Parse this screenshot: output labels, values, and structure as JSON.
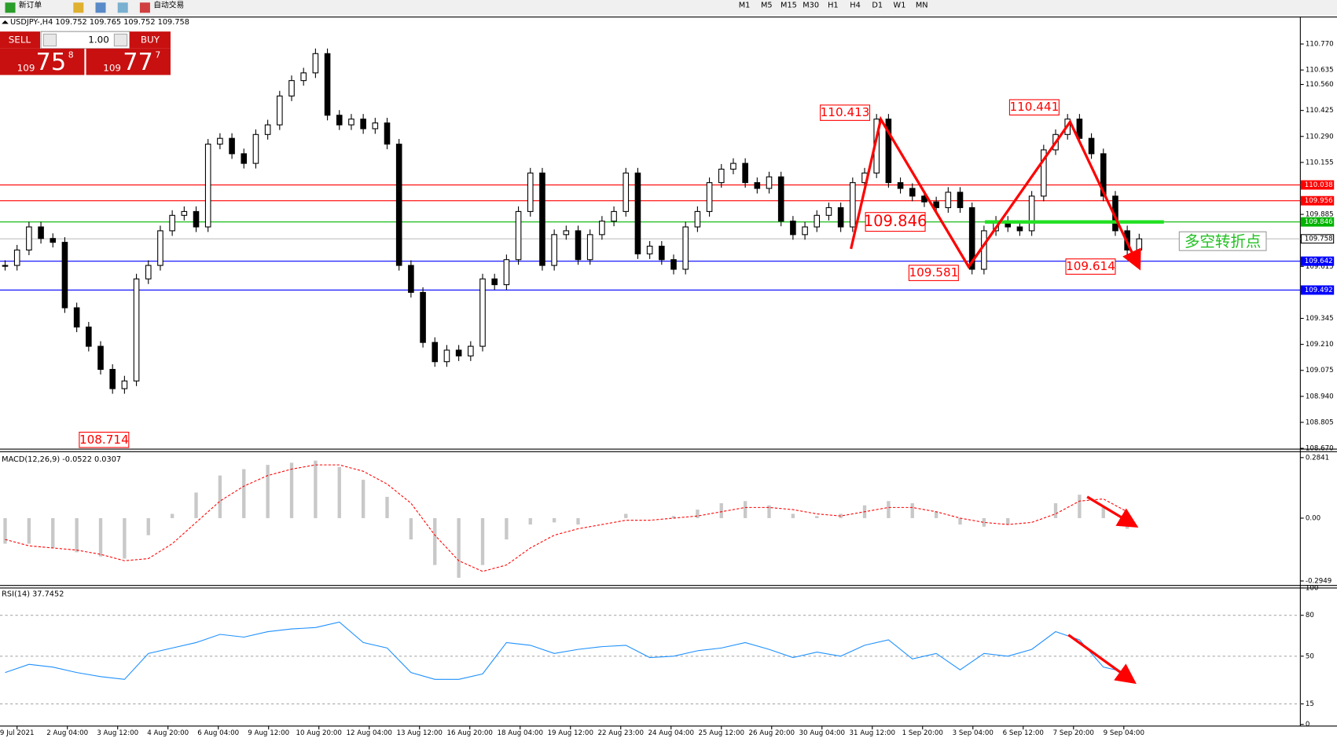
{
  "toolbar": {
    "new_order": "新订单",
    "auto_trading": "自动交易",
    "timeframes": [
      "M1",
      "M5",
      "M15",
      "M30",
      "H1",
      "H4",
      "D1",
      "W1",
      "MN"
    ]
  },
  "trade_panel": {
    "sell": "SELL",
    "buy": "BUY",
    "lots": "1.00",
    "bid": {
      "big_figure": "109",
      "pips": "75",
      "fraction": "8"
    },
    "ask": {
      "big_figure": "109",
      "pips": "77",
      "fraction": "7"
    }
  },
  "chart": {
    "title": "USDJPY-,H4 109.752 109.765 109.752 109.758",
    "ylim": [
      108.666,
      110.91
    ],
    "yticks": [
      {
        "value": 110.77,
        "label": "110.770"
      },
      110.635,
      {
        "value": 110.56,
        "label": "110.560"
      },
      110.425,
      {
        "value": 110.29,
        "label": "110.290"
      },
      110.155,
      109.885,
      109.615,
      109.345,
      {
        "value": 109.21,
        "label": "109.210"
      },
      109.075,
      {
        "value": 108.94,
        "label": "108.940"
      },
      108.805,
      {
        "value": 108.67,
        "label": "108.670"
      }
    ],
    "levels": [
      {
        "value": 110.038,
        "color": "#ff0000"
      },
      {
        "value": 109.956,
        "color": "#ff0000"
      },
      {
        "value": 109.846,
        "color": "#00b400"
      },
      {
        "value": 109.758,
        "color": "#c0c0c0"
      },
      {
        "value": 109.642,
        "color": "#0000ff"
      },
      {
        "value": 109.492,
        "color": "#0000ff"
      }
    ],
    "time_labels": [
      "9 Jul 2021",
      "2 Aug 04:00",
      "3 Aug 12:00",
      "4 Aug 20:00",
      "6 Aug 04:00",
      "9 Aug 12:00",
      "10 Aug 20:00",
      "12 Aug 04:00",
      "13 Aug 12:00",
      "16 Aug 20:00",
      "18 Aug 04:00",
      "19 Aug 12:00",
      "22 Aug 23:00",
      "24 Aug 04:00",
      "25 Aug 12:00",
      "26 Aug 20:00",
      "30 Aug 04:00",
      "31 Aug 12:00",
      "1 Sep 20:00",
      "3 Sep 04:00",
      "6 Sep 12:00",
      "7 Sep 20:00",
      "9 Sep 04:00"
    ],
    "closes": [
      109.62,
      109.7,
      109.82,
      109.76,
      109.74,
      109.4,
      109.3,
      109.2,
      109.08,
      108.98,
      109.02,
      109.55,
      109.62,
      109.8,
      109.88,
      109.9,
      109.82,
      110.25,
      110.28,
      110.2,
      110.15,
      110.3,
      110.35,
      110.5,
      110.58,
      110.62,
      110.72,
      110.4,
      110.35,
      110.38,
      110.33,
      110.36,
      110.25,
      109.62,
      109.48,
      109.22,
      109.12,
      109.18,
      109.15,
      109.2,
      109.55,
      109.52,
      109.65,
      109.9,
      110.1,
      109.62,
      109.78,
      109.8,
      109.65,
      109.78,
      109.85,
      109.9,
      110.1,
      109.68,
      109.72,
      109.65,
      109.6,
      109.82,
      109.9,
      110.05,
      110.12,
      110.15,
      110.05,
      110.02,
      110.08,
      109.85,
      109.78,
      109.82,
      109.88,
      109.92,
      109.82,
      110.05,
      110.1,
      110.38,
      110.05,
      110.02,
      109.98,
      109.95,
      109.92,
      110.0,
      109.92,
      109.6,
      109.8,
      109.85,
      109.82,
      109.8,
      109.98,
      110.22,
      110.3,
      110.38,
      110.28,
      110.2,
      109.98,
      109.8,
      109.7,
      109.758
    ],
    "annotations": [
      110.413,
      109.846,
      109.581,
      110.441,
      109.614,
      108.714
    ],
    "note": "多空转折点"
  },
  "macd": {
    "label": "MACD(12,26,9) -0.0522 0.0307",
    "ylim": [
      -0.316,
      0.312
    ],
    "yticks": [
      0.2841,
      {
        "value": 0,
        "label": "0.00"
      },
      -0.2949
    ],
    "histogram": [
      -0.12,
      -0.12,
      -0.14,
      -0.16,
      -0.18,
      -0.19,
      -0.08,
      0.02,
      0.12,
      0.2,
      0.23,
      0.25,
      0.26,
      0.27,
      0.24,
      0.18,
      0.1,
      -0.1,
      -0.22,
      -0.28,
      -0.22,
      -0.1,
      -0.03,
      -0.02,
      -0.03,
      0.0,
      0.02,
      0.0,
      0.01,
      0.04,
      0.07,
      0.08,
      0.06,
      0.02,
      0.01,
      0.02,
      0.06,
      0.08,
      0.07,
      0.03,
      -0.03,
      -0.04,
      -0.03,
      0.0,
      0.07,
      0.11,
      0.05,
      -0.05
    ],
    "signal": [
      -0.1,
      -0.13,
      -0.14,
      -0.15,
      -0.17,
      -0.2,
      -0.19,
      -0.12,
      -0.02,
      0.08,
      0.15,
      0.2,
      0.23,
      0.25,
      0.25,
      0.22,
      0.16,
      0.07,
      -0.08,
      -0.2,
      -0.25,
      -0.22,
      -0.14,
      -0.08,
      -0.05,
      -0.03,
      -0.01,
      -0.01,
      0.0,
      0.01,
      0.03,
      0.05,
      0.05,
      0.04,
      0.02,
      0.01,
      0.03,
      0.05,
      0.05,
      0.03,
      0.0,
      -0.02,
      -0.03,
      -0.02,
      0.02,
      0.08,
      0.09,
      0.03
    ]
  },
  "rsi": {
    "label": "RSI(14) 37.7452",
    "ylim": [
      -1.25,
      100
    ],
    "yticks": [
      100,
      80,
      50,
      15,
      0
    ],
    "values": [
      38,
      44,
      42,
      38,
      35,
      33,
      52,
      56,
      60,
      66,
      64,
      68,
      70,
      71,
      75,
      60,
      56,
      38,
      33,
      33,
      37,
      60,
      58,
      52,
      55,
      57,
      58,
      49,
      50,
      54,
      56,
      60,
      55,
      49,
      53,
      50,
      58,
      62,
      48,
      52,
      40,
      52,
      50,
      55,
      68,
      62,
      42,
      38
    ]
  }
}
